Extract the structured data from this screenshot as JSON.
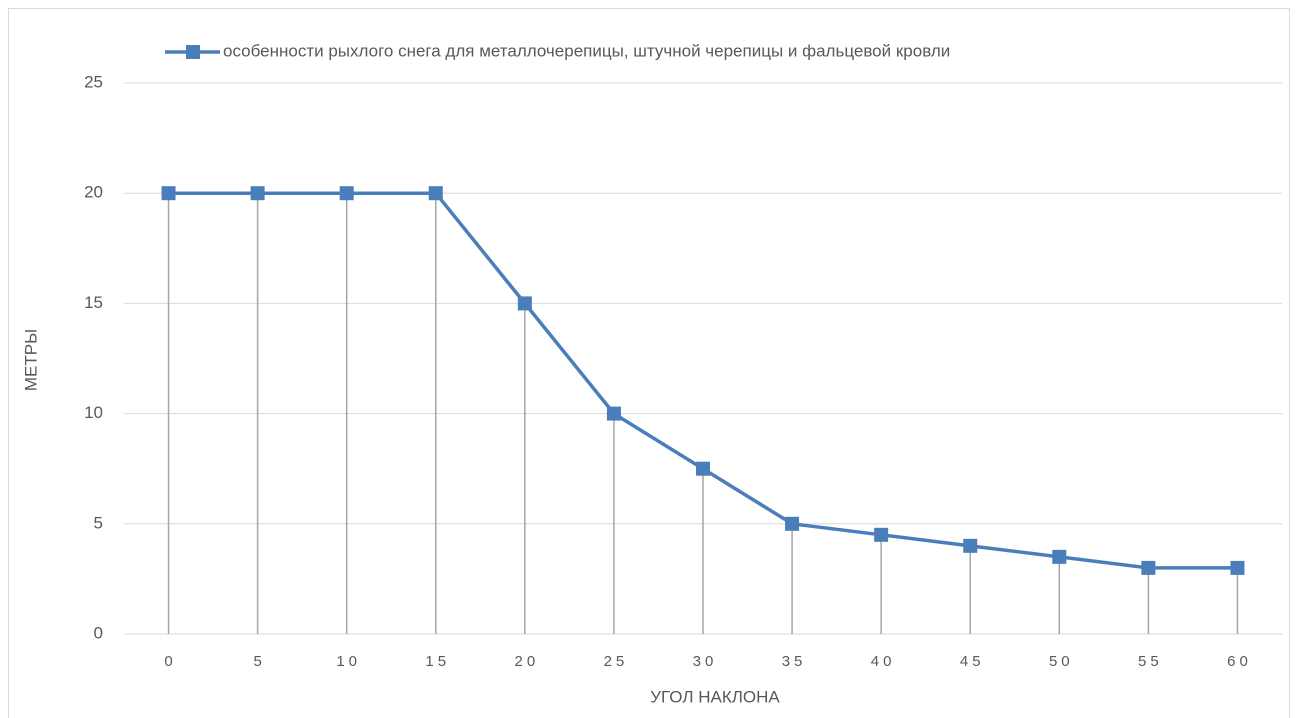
{
  "chart_data": {
    "type": "line",
    "legend_position": "top",
    "xlabel": "УГОЛ НАКЛОНА",
    "ylabel": "МЕТРЫ",
    "categories": [
      0,
      5,
      10,
      15,
      20,
      25,
      30,
      35,
      40,
      45,
      50,
      55,
      60
    ],
    "series": [
      {
        "name": "особенности рыхлого снега для металлочерепицы, штучной черепицы и фальцевой кровли",
        "color": "#4a7ebb",
        "values": [
          20,
          20,
          20,
          20,
          15,
          10,
          7.5,
          5,
          4.5,
          4,
          3.5,
          3,
          3
        ]
      }
    ],
    "ylim": [
      0,
      25
    ],
    "yticks": [
      0,
      5,
      10,
      15,
      20,
      25
    ],
    "grid": true,
    "drop_lines": true
  }
}
